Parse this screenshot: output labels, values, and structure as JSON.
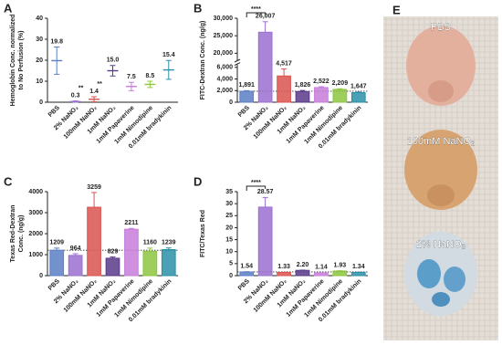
{
  "chart_data": [
    {
      "panel": "A",
      "type": "dot",
      "y_label": [
        "Hemoglobin Conc. normalized",
        "to No Perfusion (%)"
      ],
      "categories": [
        "PBS",
        "2% NaNO₂",
        "100mM NaNO₂",
        "1mM NaNO₂",
        "1mM Papaverine",
        "1mM Nimodipine",
        "0.01mM bradykinin"
      ],
      "values": [
        19.8,
        0.3,
        1.4,
        15.0,
        7.5,
        8.5,
        15.4
      ],
      "value_labels": [
        "19.8",
        "0.3",
        "1.4",
        "15.0",
        "7.5",
        "8.5",
        "15.4"
      ],
      "errors": [
        6.5,
        0.3,
        1.2,
        2.5,
        2,
        1.5,
        4.5
      ],
      "significance_labels": [
        null,
        "**",
        "**",
        null,
        null,
        null,
        null
      ],
      "colors": [
        "#5b7fc4",
        "#9b6fd0",
        "#d9534f",
        "#5a3a8a",
        "#c77ddb",
        "#8dc63f",
        "#2a8fa8"
      ],
      "ylim": [
        0,
        40
      ],
      "yticks": [
        0,
        10,
        20,
        30,
        40
      ]
    },
    {
      "panel": "B",
      "type": "bar",
      "y_label": [
        "FITC-Dextran Conc. (ng/g)"
      ],
      "categories": [
        "PBS",
        "2% NaNO₂",
        "100mM NaNO₂",
        "1mM NaNO₂",
        "1mM Papaverine",
        "1mM Nimodipine",
        "0.01mM bradykinin"
      ],
      "values": [
        1891,
        26007,
        4517,
        1826,
        2522,
        2209,
        1647
      ],
      "value_labels": [
        "1,891",
        "26,007",
        "4,517",
        "1,826",
        "2,522",
        "2,209",
        "1,647"
      ],
      "errors": [
        100,
        3000,
        1200,
        200,
        150,
        100,
        100
      ],
      "comparison": "****",
      "colors": [
        "#5b7fc4",
        "#9b6fd0",
        "#d9534f",
        "#5a3a8a",
        "#c77ddb",
        "#8dc63f",
        "#2a8fa8"
      ],
      "ylim": [
        0,
        30000
      ],
      "axis_break": [
        6500,
        18000
      ],
      "yticks": [
        0,
        {
          "value": 2000,
          "label": "2,000"
        },
        {
          "value": 4000,
          "label": "4,000"
        },
        {
          "value": 6000,
          "label": "6,000"
        },
        {
          "value": 20000,
          "label": "20,000"
        },
        {
          "value": 25000,
          "label": "25,000"
        },
        {
          "value": 30000,
          "label": "30,000"
        }
      ]
    },
    {
      "panel": "C",
      "type": "bar",
      "y_label": [
        "Texas Red-Dextran",
        "Conc. (ng/g)"
      ],
      "categories": [
        "PBS",
        "2% NaNO₂",
        "100mM NaNO₂",
        "1mM NaNO₂",
        "1mM Papaverine",
        "1mM Nimodipine",
        "0.01mM bradykinin"
      ],
      "values": [
        1209,
        964,
        3259,
        829,
        2211,
        1160,
        1239
      ],
      "errors": [
        100,
        80,
        700,
        60,
        40,
        150,
        80
      ],
      "colors": [
        "#5b7fc4",
        "#9b6fd0",
        "#d9534f",
        "#5a3a8a",
        "#c77ddb",
        "#8dc63f",
        "#2a8fa8"
      ],
      "ylim": [
        0,
        4000
      ],
      "yticks": [
        0,
        1000,
        2000,
        3000,
        4000
      ]
    },
    {
      "panel": "D",
      "type": "bar",
      "y_label": [
        "FITC/Texas Red"
      ],
      "categories": [
        "PBS",
        "2% NaNO₂",
        "100mM NaNO₂",
        "1mM NaNO₂",
        "1mM Papaverine",
        "1mM Nimodipine",
        "0.01mM bradykinin"
      ],
      "values": [
        1.54,
        28.57,
        1.33,
        2.2,
        1.14,
        1.93,
        1.34
      ],
      "value_labels": [
        "1.54",
        "28.57",
        "1.33",
        "2.20",
        "1.14",
        "1.93",
        "1.34"
      ],
      "errors": [
        0.1,
        4,
        0.1,
        0.1,
        0.05,
        0.1,
        0.1
      ],
      "comparison": "****",
      "colors": [
        "#5b7fc4",
        "#9b6fd0",
        "#d9534f",
        "#5a3a8a",
        "#c77ddb",
        "#8dc63f",
        "#2a8fa8"
      ],
      "ylim": [
        0,
        35
      ],
      "yticks": [
        0,
        5,
        10,
        15,
        20,
        25,
        30,
        35
      ]
    }
  ],
  "image_panel": {
    "panel": "E",
    "labels": [
      "PBS",
      "100mM NaNO₂",
      "2% NaNO₂"
    ]
  }
}
